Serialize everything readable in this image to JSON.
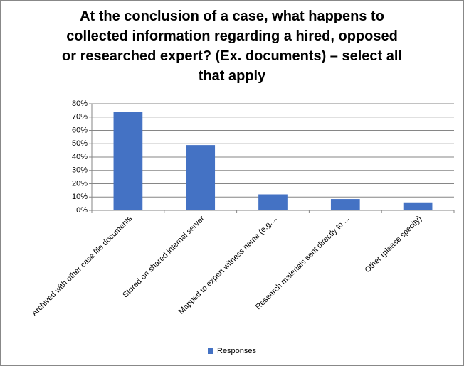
{
  "chart_data": {
    "type": "bar",
    "title": "At the conclusion of a case, what happens to collected information regarding a hired, opposed or researched expert? (Ex. documents) – select all that apply",
    "categories": [
      "Archived with other case file documents",
      "Stored on shared internal server",
      "Mapped to expert witness name (e.g....",
      "Research materials sent directly to ...",
      "Other (please specify)"
    ],
    "series": [
      {
        "name": "Responses",
        "color": "#4472c4",
        "values": [
          74,
          49,
          12,
          8.5,
          6
        ]
      }
    ],
    "ylim": [
      0,
      80
    ],
    "yticks": [
      {
        "value": 0,
        "label": "0%"
      },
      {
        "value": 10,
        "label": "10%"
      },
      {
        "value": 20,
        "label": "20%"
      },
      {
        "value": 30,
        "label": "30%"
      },
      {
        "value": 40,
        "label": "40%"
      },
      {
        "value": 50,
        "label": "50%"
      },
      {
        "value": 60,
        "label": "60%"
      },
      {
        "value": 70,
        "label": "70%"
      },
      {
        "value": 80,
        "label": "80%"
      }
    ],
    "grid": true,
    "legend": "bottom"
  }
}
